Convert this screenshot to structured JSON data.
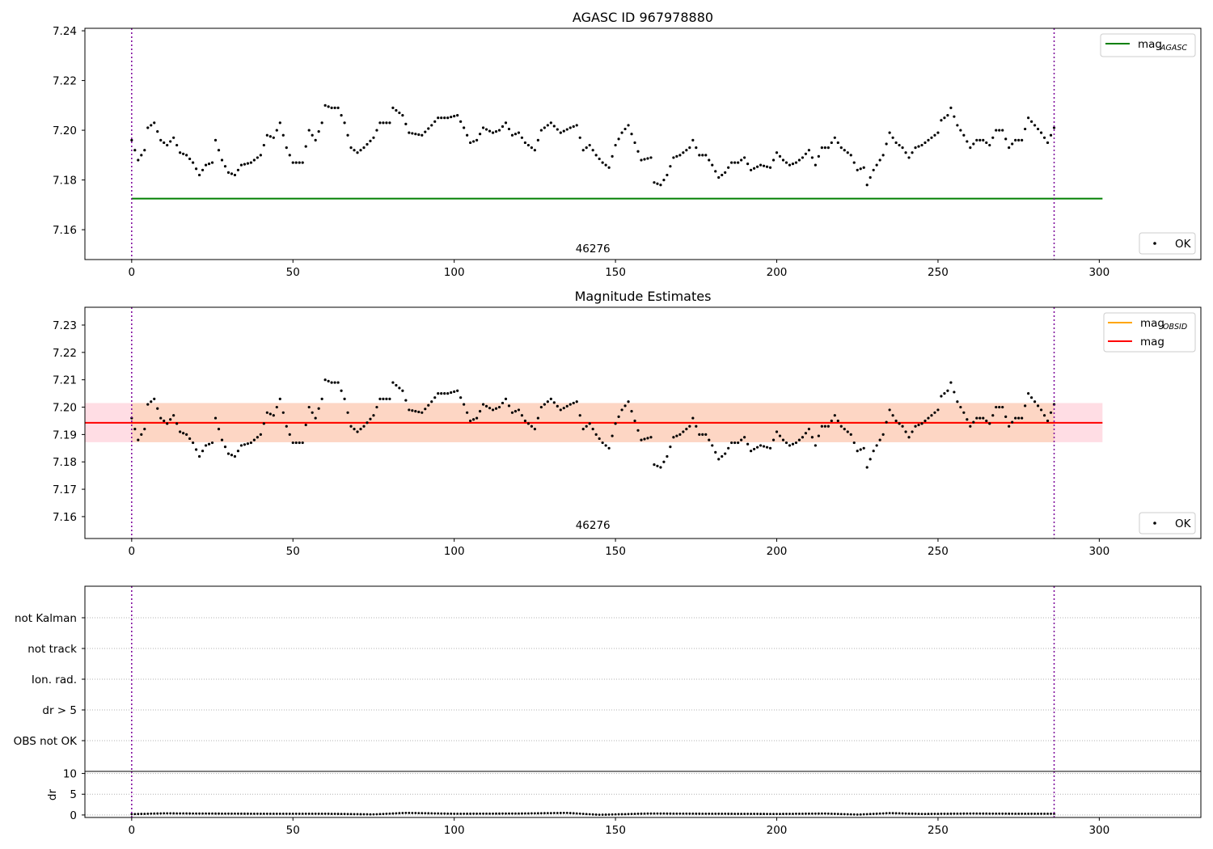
{
  "chart_data": [
    {
      "type": "scatter",
      "title": "AGASC ID 967978880",
      "xlim": [
        -14.5,
        331.5
      ],
      "ylim": [
        7.148,
        7.241
      ],
      "xticks": [
        0,
        50,
        100,
        150,
        200,
        250,
        300
      ],
      "yticks": [
        7.16,
        7.18,
        7.2,
        7.22,
        7.24
      ],
      "ytick_labels": [
        "7.16",
        "7.18",
        "7.20",
        "7.22",
        "7.24"
      ],
      "vlines": [
        0,
        286
      ],
      "obsid_label": {
        "text": "46276",
        "x": 143,
        "y": 7.151
      },
      "hlines": [
        {
          "name": "mag",
          "sub": "AGASC",
          "y": 7.1725,
          "x_range": [
            0,
            301
          ],
          "color": "#008000"
        }
      ],
      "series": [
        {
          "name": "OK",
          "color": "#000000"
        }
      ],
      "legend_upper": "top-right",
      "legend_lower": "bottom-right",
      "mag_anchor": [
        [
          0,
          7.196
        ],
        [
          2,
          7.188
        ],
        [
          4,
          7.192
        ],
        [
          5,
          7.201
        ],
        [
          7,
          7.203
        ],
        [
          9,
          7.196
        ],
        [
          11,
          7.194
        ],
        [
          13,
          7.197
        ],
        [
          15,
          7.191
        ],
        [
          17,
          7.19
        ],
        [
          19,
          7.187
        ],
        [
          21,
          7.182
        ],
        [
          23,
          7.186
        ],
        [
          25,
          7.187
        ],
        [
          26,
          7.196
        ],
        [
          28,
          7.188
        ],
        [
          30,
          7.183
        ],
        [
          32,
          7.182
        ],
        [
          34,
          7.186
        ],
        [
          37,
          7.187
        ],
        [
          40,
          7.19
        ],
        [
          42,
          7.198
        ],
        [
          44,
          7.197
        ],
        [
          46,
          7.203
        ],
        [
          48,
          7.193
        ],
        [
          50,
          7.187
        ],
        [
          53,
          7.187
        ],
        [
          55,
          7.2
        ],
        [
          57,
          7.196
        ],
        [
          59,
          7.203
        ],
        [
          60,
          7.21
        ],
        [
          62,
          7.209
        ],
        [
          64,
          7.209
        ],
        [
          66,
          7.203
        ],
        [
          68,
          7.193
        ],
        [
          70,
          7.191
        ],
        [
          72,
          7.193
        ],
        [
          75,
          7.197
        ],
        [
          77,
          7.203
        ],
        [
          80,
          7.203
        ],
        [
          81,
          7.209
        ],
        [
          84,
          7.206
        ],
        [
          86,
          7.199
        ],
        [
          90,
          7.198
        ],
        [
          93,
          7.202
        ],
        [
          95,
          7.205
        ],
        [
          98,
          7.205
        ],
        [
          101,
          7.206
        ],
        [
          103,
          7.201
        ],
        [
          105,
          7.195
        ],
        [
          107,
          7.196
        ],
        [
          109,
          7.201
        ],
        [
          112,
          7.199
        ],
        [
          114,
          7.2
        ],
        [
          116,
          7.203
        ],
        [
          118,
          7.198
        ],
        [
          120,
          7.199
        ],
        [
          122,
          7.195
        ],
        [
          125,
          7.192
        ],
        [
          127,
          7.2
        ],
        [
          130,
          7.203
        ],
        [
          133,
          7.199
        ],
        [
          136,
          7.201
        ],
        [
          138,
          7.202
        ],
        [
          140,
          7.192
        ],
        [
          142,
          7.194
        ],
        [
          144,
          7.19
        ],
        [
          146,
          7.187
        ],
        [
          148,
          7.185
        ],
        [
          150,
          7.194
        ],
        [
          152,
          7.199
        ],
        [
          154,
          7.202
        ],
        [
          156,
          7.195
        ],
        [
          158,
          7.188
        ],
        [
          161,
          7.189
        ],
        [
          162,
          7.179
        ],
        [
          164,
          7.178
        ],
        [
          166,
          7.182
        ],
        [
          168,
          7.189
        ],
        [
          170,
          7.19
        ],
        [
          173,
          7.193
        ],
        [
          174,
          7.196
        ],
        [
          176,
          7.19
        ],
        [
          178,
          7.19
        ],
        [
          180,
          7.186
        ],
        [
          182,
          7.181
        ],
        [
          184,
          7.183
        ],
        [
          186,
          7.187
        ],
        [
          188,
          7.187
        ],
        [
          190,
          7.189
        ],
        [
          192,
          7.184
        ],
        [
          195,
          7.186
        ],
        [
          198,
          7.185
        ],
        [
          200,
          7.191
        ],
        [
          202,
          7.188
        ],
        [
          204,
          7.186
        ],
        [
          206,
          7.187
        ],
        [
          208,
          7.189
        ],
        [
          210,
          7.192
        ],
        [
          212,
          7.186
        ],
        [
          214,
          7.193
        ],
        [
          216,
          7.193
        ],
        [
          218,
          7.197
        ],
        [
          220,
          7.193
        ],
        [
          223,
          7.19
        ],
        [
          225,
          7.184
        ],
        [
          227,
          7.185
        ],
        [
          228,
          7.178
        ],
        [
          230,
          7.184
        ],
        [
          233,
          7.19
        ],
        [
          235,
          7.199
        ],
        [
          237,
          7.195
        ],
        [
          239,
          7.193
        ],
        [
          241,
          7.189
        ],
        [
          243,
          7.193
        ],
        [
          245,
          7.194
        ],
        [
          248,
          7.197
        ],
        [
          250,
          7.199
        ],
        [
          251,
          7.204
        ],
        [
          253,
          7.206
        ],
        [
          254,
          7.209
        ],
        [
          256,
          7.202
        ],
        [
          258,
          7.198
        ],
        [
          260,
          7.193
        ],
        [
          262,
          7.196
        ],
        [
          264,
          7.196
        ],
        [
          266,
          7.194
        ],
        [
          268,
          7.2
        ],
        [
          270,
          7.2
        ],
        [
          272,
          7.193
        ],
        [
          274,
          7.196
        ],
        [
          276,
          7.196
        ],
        [
          278,
          7.205
        ],
        [
          280,
          7.202
        ],
        [
          282,
          7.199
        ],
        [
          284,
          7.195
        ],
        [
          286,
          7.201
        ]
      ]
    },
    {
      "type": "scatter",
      "title": "Magnitude Estimates",
      "xlim": [
        -14.5,
        331.5
      ],
      "ylim": [
        7.152,
        7.2365
      ],
      "xticks": [
        0,
        50,
        100,
        150,
        200,
        250,
        300
      ],
      "yticks": [
        7.16,
        7.17,
        7.18,
        7.19,
        7.2,
        7.21,
        7.22,
        7.23
      ],
      "ytick_labels": [
        "7.16",
        "7.17",
        "7.18",
        "7.19",
        "7.20",
        "7.21",
        "7.22",
        "7.23"
      ],
      "vlines": [
        0,
        286
      ],
      "obsid_label": {
        "text": "46276",
        "x": 143,
        "y": 7.1555
      },
      "bands": [
        {
          "y0": 7.1872,
          "y1": 7.2015,
          "x_range": [
            -14.5,
            301
          ],
          "color": "#ffdde4"
        },
        {
          "y0": 7.1872,
          "y1": 7.2015,
          "x_range": [
            0,
            286
          ],
          "color": "#fdd6c4"
        }
      ],
      "hlines": [
        {
          "name": "mag",
          "sub": "OBSID",
          "y": 7.1943,
          "x_range": [
            0,
            286
          ],
          "color": "#ffa500"
        },
        {
          "name": "mag",
          "sub": "",
          "y": 7.1943,
          "x_range": [
            -14.5,
            301
          ],
          "color": "#ff0000"
        }
      ],
      "series": [
        {
          "name": "OK",
          "color": "#000000"
        }
      ],
      "legend_upper": "top-right",
      "legend_lower": "bottom-right",
      "points_from": "same values as upper panel"
    },
    {
      "type": "scatter",
      "title": "",
      "xlim": [
        -14.5,
        331.5
      ],
      "categories": [
        "OBS not OK",
        "dr > 5",
        "Ion. rad.",
        "not track",
        "not Kalman"
      ],
      "vlines": [
        0,
        286
      ],
      "flag_points": []
    },
    {
      "type": "scatter",
      "title": "",
      "xlim": [
        -14.5,
        331.5
      ],
      "ylim": [
        -0.6,
        10.5
      ],
      "xticks": [
        0,
        50,
        100,
        150,
        200,
        250,
        300
      ],
      "yticks": [
        0,
        5,
        10
      ],
      "ytick_labels": [
        "0",
        "5",
        "10"
      ],
      "ylabel": "dr",
      "vlines": [
        0,
        286
      ],
      "dr_anchor": [
        [
          0,
          0.2
        ],
        [
          10,
          0.4
        ],
        [
          20,
          0.35
        ],
        [
          40,
          0.3
        ],
        [
          60,
          0.3
        ],
        [
          75,
          0.15
        ],
        [
          85,
          0.5
        ],
        [
          100,
          0.3
        ],
        [
          120,
          0.35
        ],
        [
          135,
          0.5
        ],
        [
          145,
          0.05
        ],
        [
          160,
          0.35
        ],
        [
          180,
          0.3
        ],
        [
          200,
          0.25
        ],
        [
          215,
          0.35
        ],
        [
          225,
          0.1
        ],
        [
          235,
          0.45
        ],
        [
          245,
          0.25
        ],
        [
          260,
          0.35
        ],
        [
          275,
          0.3
        ],
        [
          286,
          0.3
        ]
      ]
    }
  ]
}
